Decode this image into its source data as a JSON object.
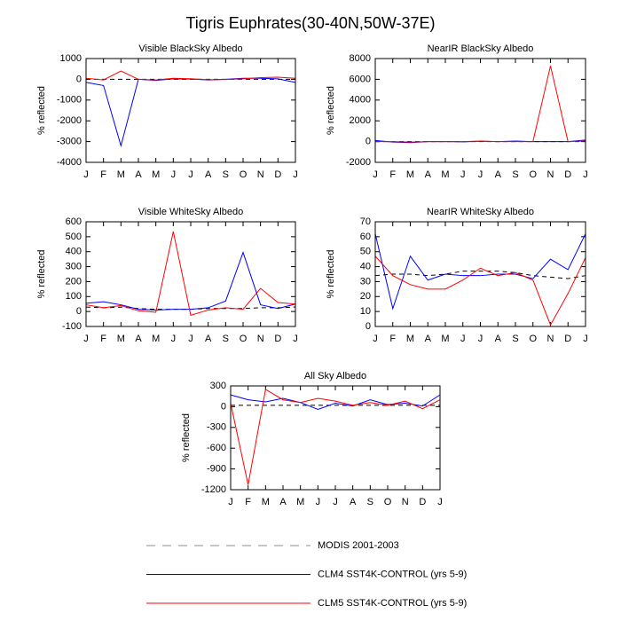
{
  "title": "Tigris Euphrates(30-40N,50W-37E)",
  "legend": [
    {
      "name": "MODIS 2001-2003",
      "color": "#000000",
      "dash": true
    },
    {
      "name": "CLM4 SST4K-CONTROL (yrs 5-9)",
      "color": "#0000ff",
      "dash": false
    },
    {
      "name": "CLM5 SST4K-CONTROL (yrs 5-9)",
      "color": "#ff0000",
      "dash": false
    }
  ],
  "chart_data": [
    {
      "type": "line",
      "title": "Visible BlackSky Albedo",
      "ylabel": "% reflected",
      "categories": [
        "J",
        "F",
        "M",
        "A",
        "M",
        "J",
        "J",
        "A",
        "S",
        "O",
        "N",
        "D",
        "J"
      ],
      "ylim": [
        -4000,
        1000
      ],
      "yticks": [
        -4000,
        -3000,
        -2000,
        -1000,
        0,
        1000
      ],
      "series": [
        {
          "values": [
            0,
            0,
            0,
            0,
            0,
            0,
            0,
            0,
            0,
            0,
            0,
            0,
            0
          ]
        },
        {
          "values": [
            -150,
            -300,
            -3200,
            0,
            -50,
            20,
            10,
            -30,
            0,
            50,
            50,
            20,
            -150
          ]
        },
        {
          "values": [
            50,
            -30,
            400,
            0,
            -30,
            50,
            30,
            -20,
            -10,
            20,
            80,
            100,
            50
          ]
        }
      ]
    },
    {
      "type": "line",
      "title": "NearIR BlackSky Albedo",
      "ylabel": "% reflected",
      "categories": [
        "J",
        "F",
        "M",
        "A",
        "M",
        "J",
        "J",
        "A",
        "S",
        "O",
        "N",
        "D",
        "J"
      ],
      "ylim": [
        -2000,
        8000
      ],
      "yticks": [
        -2000,
        0,
        2000,
        4000,
        6000,
        8000
      ],
      "series": [
        {
          "values": [
            0,
            0,
            0,
            0,
            0,
            0,
            0,
            0,
            0,
            0,
            0,
            0,
            0
          ]
        },
        {
          "values": [
            100,
            -50,
            -100,
            0,
            0,
            -20,
            30,
            0,
            50,
            0,
            0,
            0,
            150
          ]
        },
        {
          "values": [
            0,
            0,
            -50,
            0,
            0,
            0,
            50,
            0,
            0,
            0,
            7300,
            0,
            50
          ]
        }
      ]
    },
    {
      "type": "line",
      "title": "Visible WhiteSky Albedo",
      "ylabel": "% reflected",
      "categories": [
        "J",
        "F",
        "M",
        "A",
        "M",
        "J",
        "J",
        "A",
        "S",
        "O",
        "N",
        "D",
        "J"
      ],
      "ylim": [
        -100,
        600
      ],
      "yticks": [
        -100,
        0,
        100,
        200,
        300,
        400,
        500,
        600
      ],
      "series": [
        {
          "values": [
            30,
            25,
            30,
            20,
            15,
            15,
            15,
            20,
            20,
            20,
            25,
            25,
            30
          ]
        },
        {
          "values": [
            55,
            65,
            45,
            15,
            10,
            15,
            15,
            25,
            70,
            395,
            45,
            20,
            50
          ]
        },
        {
          "values": [
            45,
            25,
            40,
            5,
            -5,
            535,
            -25,
            10,
            25,
            15,
            155,
            60,
            50
          ]
        }
      ]
    },
    {
      "type": "line",
      "title": "NearIR WhiteSky Albedo",
      "ylabel": "% reflected",
      "categories": [
        "J",
        "F",
        "M",
        "A",
        "M",
        "J",
        "J",
        "A",
        "S",
        "O",
        "N",
        "D",
        "J"
      ],
      "ylim": [
        0,
        70
      ],
      "yticks": [
        0,
        10,
        20,
        30,
        40,
        50,
        60,
        70
      ],
      "series": [
        {
          "values": [
            34,
            35,
            35,
            34,
            35,
            37,
            37,
            37,
            36,
            34,
            33,
            32,
            34
          ]
        },
        {
          "values": [
            62,
            12,
            47,
            31,
            35,
            34,
            34,
            35,
            35,
            32,
            45,
            38,
            62
          ]
        },
        {
          "values": [
            47,
            34,
            28,
            25,
            25,
            31,
            39,
            34,
            36,
            31,
            1,
            22,
            46
          ]
        }
      ]
    },
    {
      "type": "line",
      "title": "All Sky Albedo",
      "ylabel": "% reflected",
      "categories": [
        "J",
        "F",
        "M",
        "A",
        "M",
        "J",
        "J",
        "A",
        "S",
        "O",
        "N",
        "D",
        "J"
      ],
      "ylim": [
        -1200,
        300
      ],
      "yticks": [
        -1200,
        -900,
        -600,
        -300,
        0,
        300
      ],
      "series": [
        {
          "values": [
            20,
            20,
            20,
            20,
            20,
            20,
            20,
            20,
            20,
            20,
            20,
            20,
            20
          ]
        },
        {
          "values": [
            170,
            100,
            70,
            120,
            60,
            -40,
            50,
            10,
            100,
            30,
            50,
            10,
            170
          ]
        },
        {
          "values": [
            50,
            -1130,
            250,
            100,
            60,
            120,
            80,
            20,
            60,
            20,
            80,
            -30,
            100
          ]
        }
      ]
    }
  ]
}
